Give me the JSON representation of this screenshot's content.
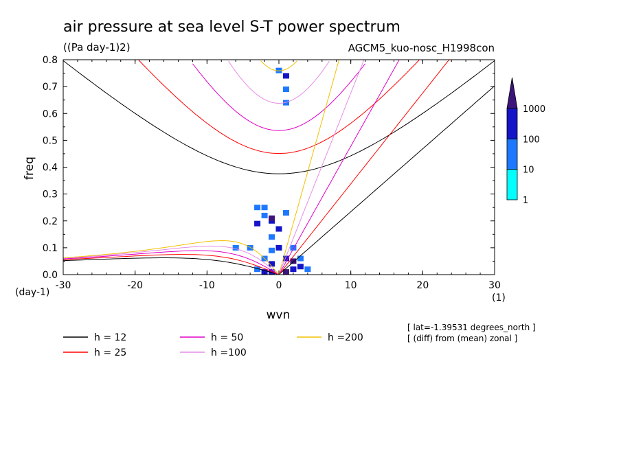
{
  "title": "air pressure at sea level S-T power spectrum",
  "subtitle": "((Pa day-1)2)",
  "run_name": "AGCM5_kuo-nosc_H1998con",
  "notes": [
    "[ lat=-1.39531 degrees_north ]",
    "[ (diff) from (mean) zonal ]"
  ],
  "chart_data": {
    "type": "heatmap",
    "xlabel": "wvn",
    "ylabel": "freq",
    "x_unit": "(1)",
    "y_unit": "(day-1)",
    "xlim": [
      -30,
      30
    ],
    "ylim": [
      0,
      0.8
    ],
    "x_ticks": [
      -30,
      -20,
      -10,
      0,
      10,
      20,
      30
    ],
    "x_tick_labels": [
      "-30",
      "-20",
      "-10",
      "0",
      "10",
      "20",
      "30"
    ],
    "y_ticks": [
      0,
      0.1,
      0.2,
      0.3,
      0.4,
      0.5,
      0.6,
      0.7,
      0.8
    ],
    "y_tick_labels": [
      "0.0",
      "0.1",
      "0.2",
      "0.3",
      "0.4",
      "0.5",
      "0.6",
      "0.7",
      "0.8"
    ],
    "colorbar": {
      "levels": [
        1,
        10,
        100,
        1000
      ],
      "labels": [
        "1",
        "10",
        "100",
        "1000"
      ],
      "colors": [
        "#00ffff",
        "#1e78ff",
        "#1414c8",
        "#3c147a"
      ]
    },
    "dispersion_curves": [
      {
        "label": "h = 12",
        "h": 12,
        "color": "#000000"
      },
      {
        "label": "h = 25",
        "h": 25,
        "color": "#ff0000"
      },
      {
        "label": "h = 50",
        "h": 50,
        "color": "#e000c8"
      },
      {
        "label": "h =100",
        "h": 100,
        "color": "#e68ce6"
      },
      {
        "label": "h =200",
        "h": 200,
        "color": "#f2c000"
      }
    ],
    "spectrum_cells": [
      {
        "x": -2,
        "y": 0.01,
        "level": 2
      },
      {
        "x": -1,
        "y": 0.01,
        "level": 2
      },
      {
        "x": 1,
        "y": 0.01,
        "level": 3
      },
      {
        "x": 2,
        "y": 0.02,
        "level": 2
      },
      {
        "x": -3,
        "y": 0.02,
        "level": 1
      },
      {
        "x": 3,
        "y": 0.03,
        "level": 2
      },
      {
        "x": -1,
        "y": 0.04,
        "level": 2
      },
      {
        "x": 2,
        "y": 0.05,
        "level": 3
      },
      {
        "x": 1,
        "y": 0.06,
        "level": 2
      },
      {
        "x": -2,
        "y": 0.06,
        "level": 1
      },
      {
        "x": -1,
        "y": 0.09,
        "level": 1
      },
      {
        "x": 0,
        "y": 0.1,
        "level": 2
      },
      {
        "x": -1,
        "y": 0.14,
        "level": 1
      },
      {
        "x": 0,
        "y": 0.17,
        "level": 2
      },
      {
        "x": -1,
        "y": 0.2,
        "level": 2
      },
      {
        "x": -1,
        "y": 0.21,
        "level": 3
      },
      {
        "x": -2,
        "y": 0.22,
        "level": 1
      },
      {
        "x": -2,
        "y": 0.25,
        "level": 1
      },
      {
        "x": 1,
        "y": 0.23,
        "level": 1
      },
      {
        "x": -3,
        "y": 0.25,
        "level": 1
      },
      {
        "x": -3,
        "y": 0.19,
        "level": 2
      },
      {
        "x": -4,
        "y": 0.1,
        "level": 1
      },
      {
        "x": -6,
        "y": 0.1,
        "level": 1
      },
      {
        "x": 2,
        "y": 0.1,
        "level": 1
      },
      {
        "x": 3,
        "y": 0.06,
        "level": 1
      },
      {
        "x": 4,
        "y": 0.02,
        "level": 1
      },
      {
        "x": 0,
        "y": 0.76,
        "level": 1
      },
      {
        "x": 1,
        "y": 0.74,
        "level": 2
      },
      {
        "x": 1,
        "y": 0.69,
        "level": 1
      },
      {
        "x": 1,
        "y": 0.64,
        "level": 1
      }
    ]
  }
}
